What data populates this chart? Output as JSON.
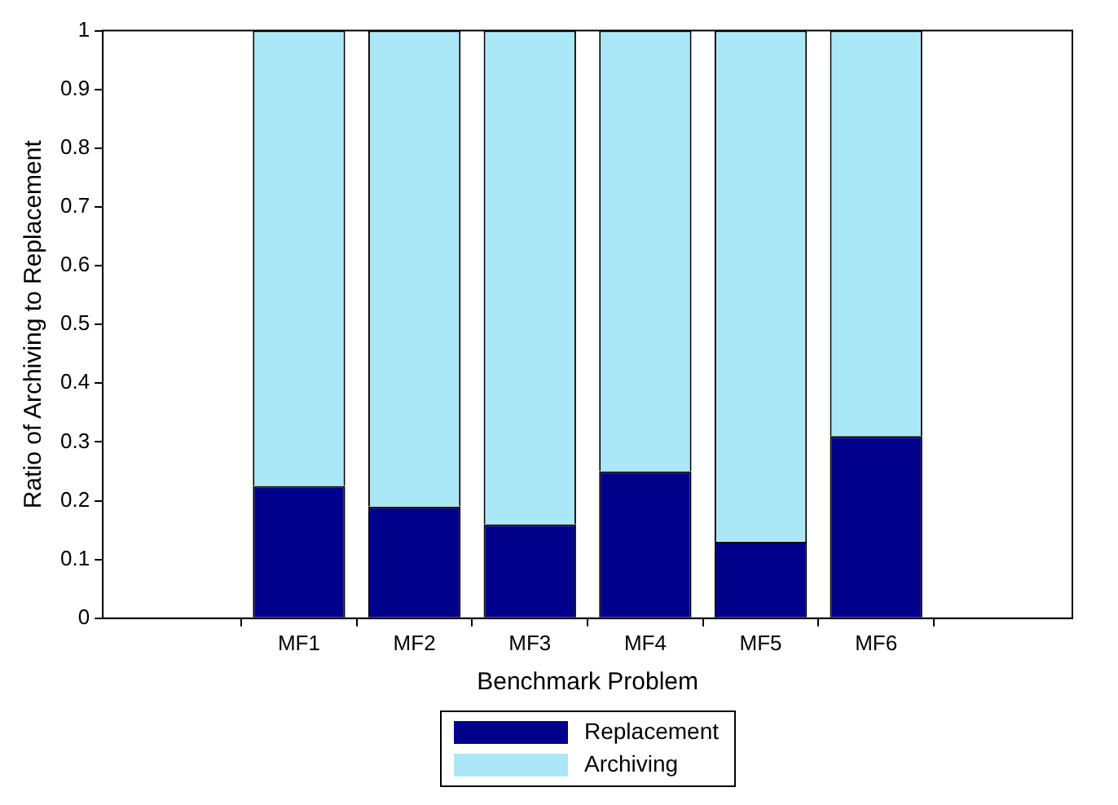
{
  "chart_data": {
    "type": "bar",
    "stacked": true,
    "xlabel": "Benchmark Problem",
    "ylabel": "Ratio of Archiving to Replacement",
    "categories": [
      "MF1",
      "MF2",
      "MF3",
      "MF4",
      "MF5",
      "MF6"
    ],
    "series": [
      {
        "name": "Replacement",
        "color": "#00008b",
        "values": [
          0.225,
          0.19,
          0.16,
          0.25,
          0.13,
          0.31
        ]
      },
      {
        "name": "Archiving",
        "color": "#aae8f8",
        "values": [
          0.775,
          0.81,
          0.84,
          0.75,
          0.87,
          0.69
        ]
      }
    ],
    "ylim": [
      0,
      1
    ],
    "yticks": [
      0,
      0.1,
      0.2,
      0.3,
      0.4,
      0.5,
      0.6,
      0.7,
      0.8,
      0.9,
      1
    ],
    "grid": false,
    "legend": "bottom"
  }
}
